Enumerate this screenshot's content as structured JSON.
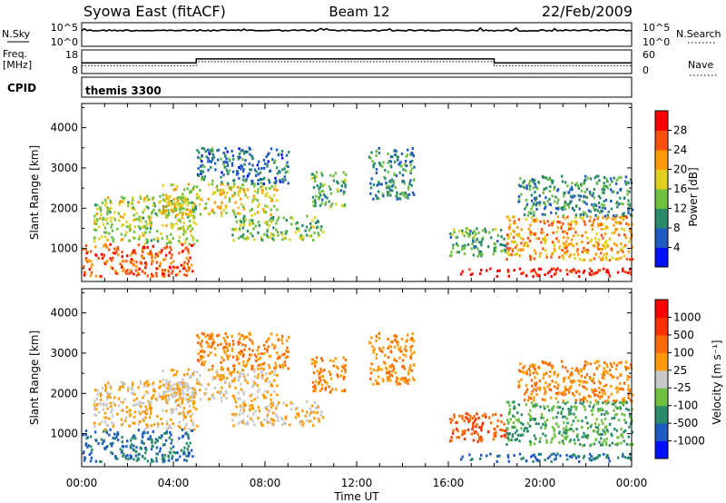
{
  "header": {
    "left": "Syowa East (fitACF)",
    "center": "Beam 12",
    "right": "22/Feb/2009"
  },
  "noise_panel": {
    "left_label": "N.Sky",
    "left_ticks": [
      "10^5",
      "10^0"
    ],
    "right_ticks": [
      "10^5",
      "10^0"
    ],
    "right_label": "N.Search"
  },
  "freq_panel": {
    "left_label_1": "Freq.",
    "left_label_2": "[MHz]",
    "left_ticks": [
      "18",
      "8"
    ],
    "right_ticks": [
      "60",
      "0"
    ],
    "right_label": "Nave",
    "freq_steps": [
      {
        "t0": 0.0,
        "t1": 5.0,
        "f": 12.5
      },
      {
        "t0": 5.0,
        "t1": 18.0,
        "f": 14.2
      },
      {
        "t0": 18.0,
        "t1": 24.0,
        "f": 12.5
      }
    ]
  },
  "cpid": {
    "label": "CPID",
    "value": "themis 3300"
  },
  "axes": {
    "ylabel": "Slant Range [km]",
    "xlabel": "Time UT",
    "yticks": [
      "1000",
      "2000",
      "3000",
      "4000"
    ],
    "xticks": [
      "00:00",
      "04:00",
      "08:00",
      "12:00",
      "16:00",
      "20:00",
      "00:00"
    ],
    "xlim": [
      0,
      24
    ],
    "ylim": [
      180,
      4600
    ]
  },
  "power_colorbar": {
    "label": "Power [dB]",
    "ticks": [
      "4",
      "8",
      "12",
      "16",
      "20",
      "24",
      "28"
    ],
    "colors": [
      "#0010ff",
      "#1f5ac0",
      "#2a8a6a",
      "#6fc040",
      "#e0d020",
      "#ff9a00",
      "#ff5010",
      "#ff0000"
    ]
  },
  "velocity_colorbar": {
    "label": "Velocity [m s⁻¹]",
    "ticks": [
      "1000",
      "500",
      "100",
      "25",
      "-25",
      "-100",
      "-500",
      "-1000"
    ],
    "colors": [
      "#0010ff",
      "#1f5ac0",
      "#2a8a6a",
      "#6fc040",
      "#c8c8c8",
      "#ff9a00",
      "#ff6a00",
      "#ff3000",
      "#ff0000"
    ]
  },
  "chart_data": {
    "type": "heatmap",
    "title": "Syowa East (fitACF)",
    "xlabel": "Time UT",
    "ylabel": "Slant Range [km]",
    "xlim": [
      0,
      24
    ],
    "ylim": [
      180,
      4600
    ],
    "x_unit": "hours UT",
    "grid": false,
    "scatter_regions": [
      {
        "t0": 0.0,
        "t1": 4.8,
        "r0": 300,
        "r1": 1100,
        "power_db": 24,
        "velocity": -500
      },
      {
        "t0": 0.5,
        "t1": 5.0,
        "r0": 1100,
        "r1": 2300,
        "power_db": 14,
        "velocity": 25
      },
      {
        "t0": 3.5,
        "t1": 8.5,
        "r0": 1800,
        "r1": 2600,
        "power_db": 16,
        "velocity": 25
      },
      {
        "t0": 6.5,
        "t1": 10.5,
        "r0": 1200,
        "r1": 1800,
        "power_db": 12,
        "velocity": 25
      },
      {
        "t0": 5.0,
        "t1": 9.0,
        "r0": 2600,
        "r1": 3500,
        "power_db": 6,
        "velocity": 100
      },
      {
        "t0": 10.0,
        "t1": 11.5,
        "r0": 2000,
        "r1": 2900,
        "power_db": 10,
        "velocity": 100
      },
      {
        "t0": 12.5,
        "t1": 14.5,
        "r0": 2200,
        "r1": 3500,
        "power_db": 8,
        "velocity": 100
      },
      {
        "t0": 16.0,
        "t1": 18.5,
        "r0": 800,
        "r1": 1500,
        "power_db": 10,
        "velocity": 500
      },
      {
        "t0": 16.5,
        "t1": 24.0,
        "r0": 300,
        "r1": 500,
        "power_db": 28,
        "velocity": -500
      },
      {
        "t0": 18.5,
        "t1": 24.0,
        "r0": 700,
        "r1": 1800,
        "power_db": 20,
        "velocity": -100
      },
      {
        "t0": 19.0,
        "t1": 24.0,
        "r0": 1800,
        "r1": 2800,
        "power_db": 8,
        "velocity": 100
      }
    ]
  }
}
